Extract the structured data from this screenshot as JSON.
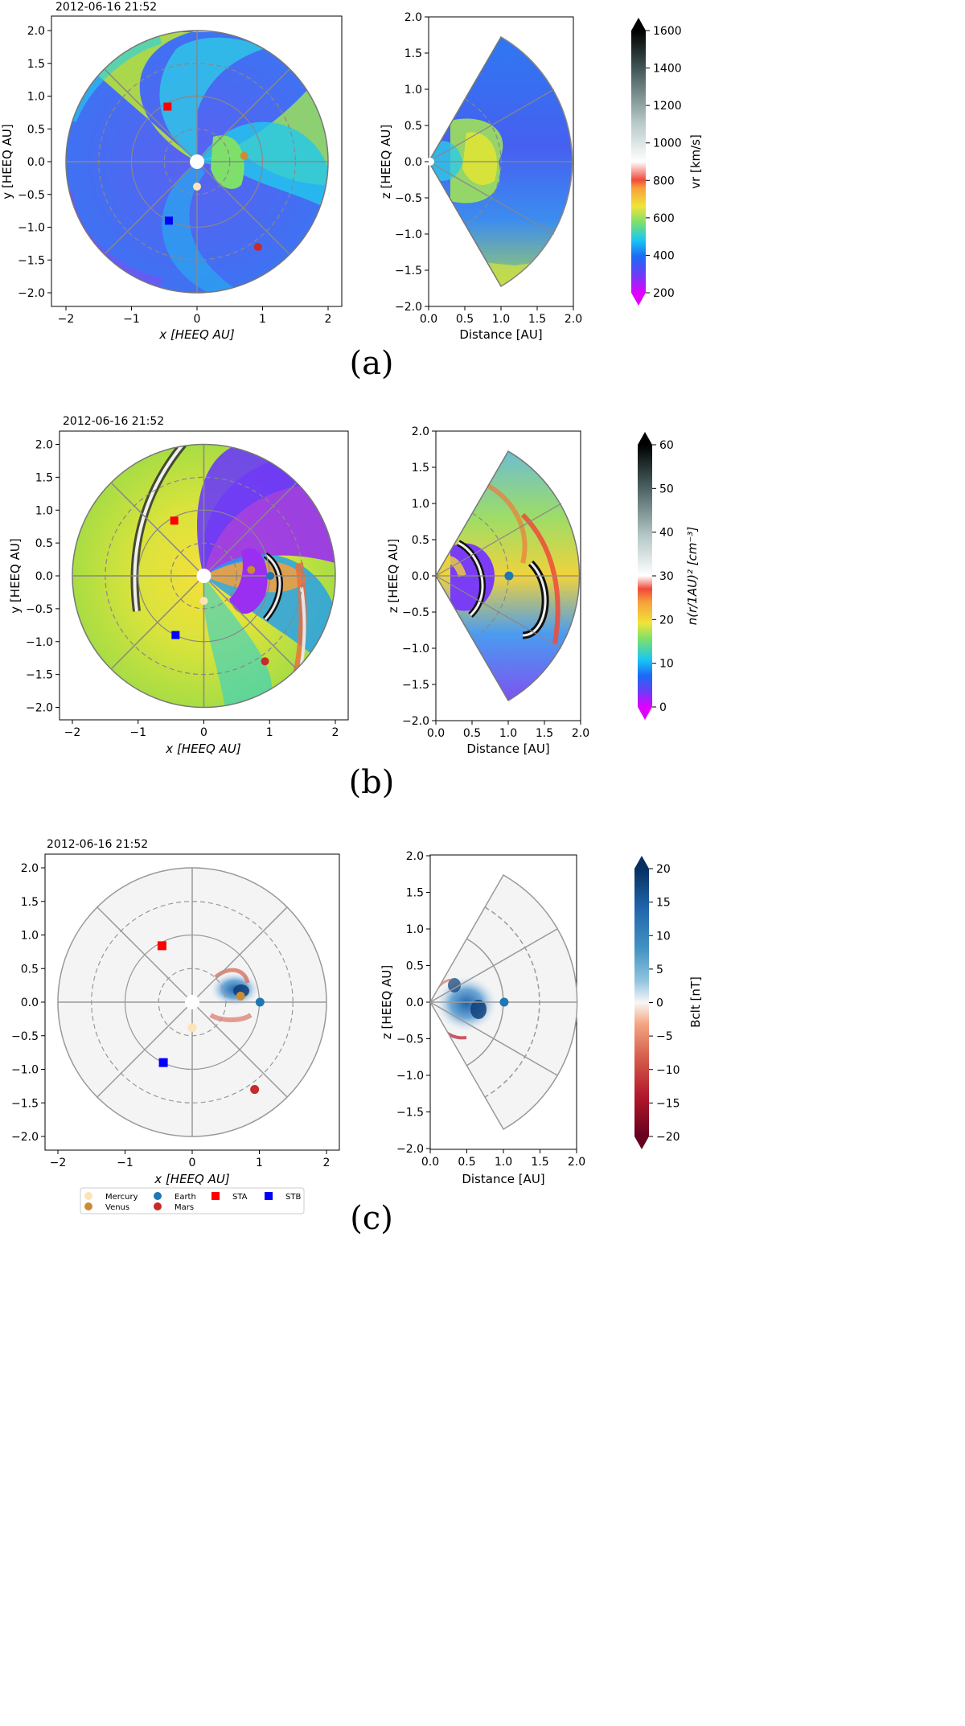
{
  "panels": [
    {
      "id": "a",
      "panel_label": "(a)",
      "timestamp": "2012-06-16 21:52",
      "colormap": "velocity",
      "colorbar": {
        "label": "vr  [km/s]",
        "min": 200,
        "max": 1600,
        "ticks": [
          200,
          400,
          600,
          800,
          1000,
          1200,
          1400,
          1600
        ]
      }
    },
    {
      "id": "b",
      "panel_label": "(b)",
      "timestamp": "2012-06-16 21:52",
      "colormap": "density",
      "colorbar": {
        "label": "n(r/1AU)²  [cm⁻³]",
        "min": 0,
        "max": 60,
        "ticks": [
          0,
          10,
          20,
          30,
          40,
          50,
          60
        ]
      }
    },
    {
      "id": "c",
      "panel_label": "(c)",
      "timestamp": "2012-06-16 21:52",
      "colormap": "diverging",
      "colorbar": {
        "label": "Bclt  [nT]",
        "min": -20,
        "max": 20,
        "ticks": [
          -20,
          -15,
          -10,
          -5,
          0,
          5,
          10,
          15,
          20
        ]
      }
    }
  ],
  "axes_text": {
    "equatorial_xlabel": "x [HEEQ AU]",
    "equatorial_ylabel": "y [HEEQ AU]",
    "meridional_xlabel": "Distance [AU]",
    "meridional_ylabel": "z [HEEQ AU]"
  },
  "chart_data": {
    "type": "scatter",
    "title": "2012-06-16 21:52",
    "equatorial": {
      "xlabel": "x [HEEQ AU]",
      "ylabel": "y [HEEQ AU]",
      "xlim": [
        -2.2,
        2.2
      ],
      "ylim": [
        -2.2,
        2.2
      ],
      "xticks": [
        -2,
        -1,
        0,
        1,
        2
      ],
      "yticks": [
        -2.0,
        -1.5,
        -1.0,
        -0.5,
        0.0,
        0.5,
        1.0,
        1.5,
        2.0
      ],
      "domain_radius_au": 2.0
    },
    "meridional": {
      "xlabel": "Distance [AU]",
      "ylabel": "z [HEEQ AU]",
      "xlim": [
        0.0,
        2.0
      ],
      "ylim": [
        -2.0,
        2.0
      ],
      "xticks": [
        0.0,
        0.5,
        1.0,
        1.5,
        2.0
      ],
      "yticks": [
        -2.0,
        -1.5,
        -1.0,
        -0.5,
        0.0,
        0.5,
        1.0,
        1.5,
        2.0
      ],
      "half_angle_deg": 60
    },
    "legend": [
      {
        "name": "Mercury",
        "color": "#fde3b5",
        "marker": "circle"
      },
      {
        "name": "Venus",
        "color": "#c98d35",
        "marker": "circle"
      },
      {
        "name": "Earth",
        "color": "#1f77b4",
        "marker": "circle"
      },
      {
        "name": "Mars",
        "color": "#c62a2a",
        "marker": "circle"
      },
      {
        "name": "STA",
        "color": "#ff0000",
        "marker": "square"
      },
      {
        "name": "STB",
        "color": "#0000ff",
        "marker": "square"
      }
    ],
    "bodies": [
      {
        "name": "Mercury",
        "x": 0.0,
        "y": -0.38
      },
      {
        "name": "Venus",
        "x": 0.72,
        "y": 0.09
      },
      {
        "name": "Earth",
        "x": 1.01,
        "y": 0.0
      },
      {
        "name": "Mars",
        "x": 0.93,
        "y": -1.3
      },
      {
        "name": "STA",
        "x": -0.45,
        "y": 0.84
      },
      {
        "name": "STB",
        "x": -0.43,
        "y": -0.9
      }
    ],
    "meridional_bodies": [
      {
        "name": "Earth",
        "distance": 1.01,
        "z": 0.0
      }
    ]
  }
}
